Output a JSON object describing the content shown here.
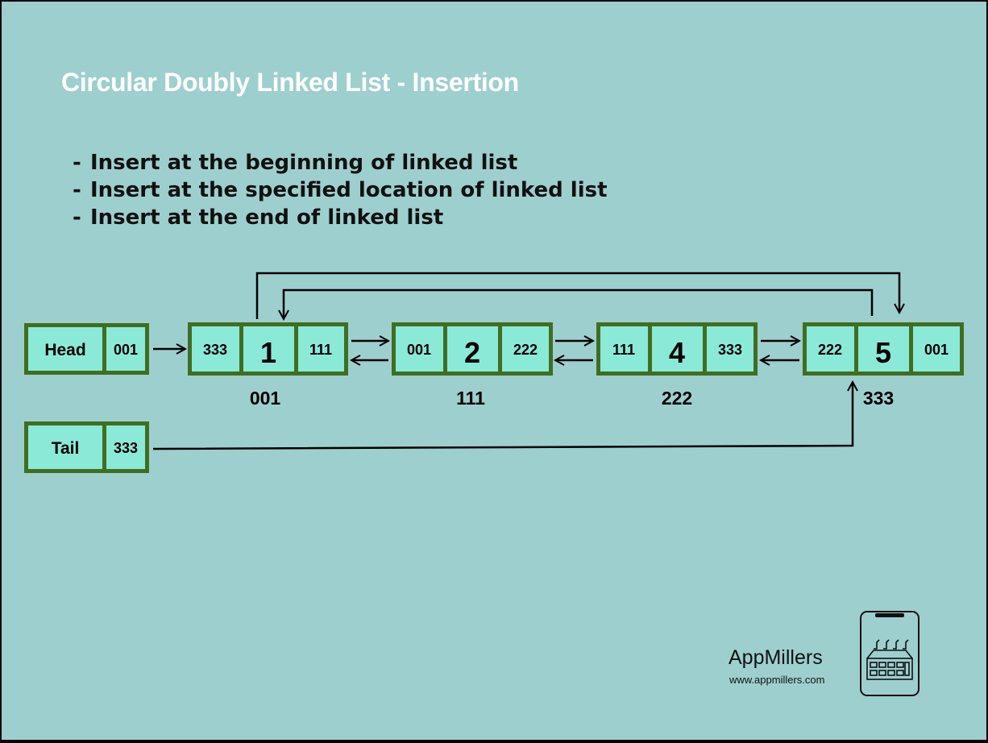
{
  "title": "Circular Doubly Linked List - Insertion",
  "bullets": [
    "Insert at the beginning of linked list",
    "Insert at the specified location of linked  list",
    "Insert at the end of linked list"
  ],
  "head": {
    "label": "Head",
    "pointer": "001"
  },
  "tail": {
    "label": "Tail",
    "pointer": "333"
  },
  "nodes": [
    {
      "prev": "333",
      "value": "1",
      "next": "111",
      "address": "001"
    },
    {
      "prev": "001",
      "value": "2",
      "next": "222",
      "address": "111"
    },
    {
      "prev": "111",
      "value": "4",
      "next": "333",
      "address": "222"
    },
    {
      "prev": "222",
      "value": "5",
      "next": "001",
      "address": "333"
    }
  ],
  "brand": {
    "name": "AppMillers",
    "url": "www.appmillers.com"
  },
  "colors": {
    "background": "#9ecfcf",
    "cell_fill": "#8be9d8",
    "cell_border": "#3f6e22",
    "title": "#ffffff"
  }
}
